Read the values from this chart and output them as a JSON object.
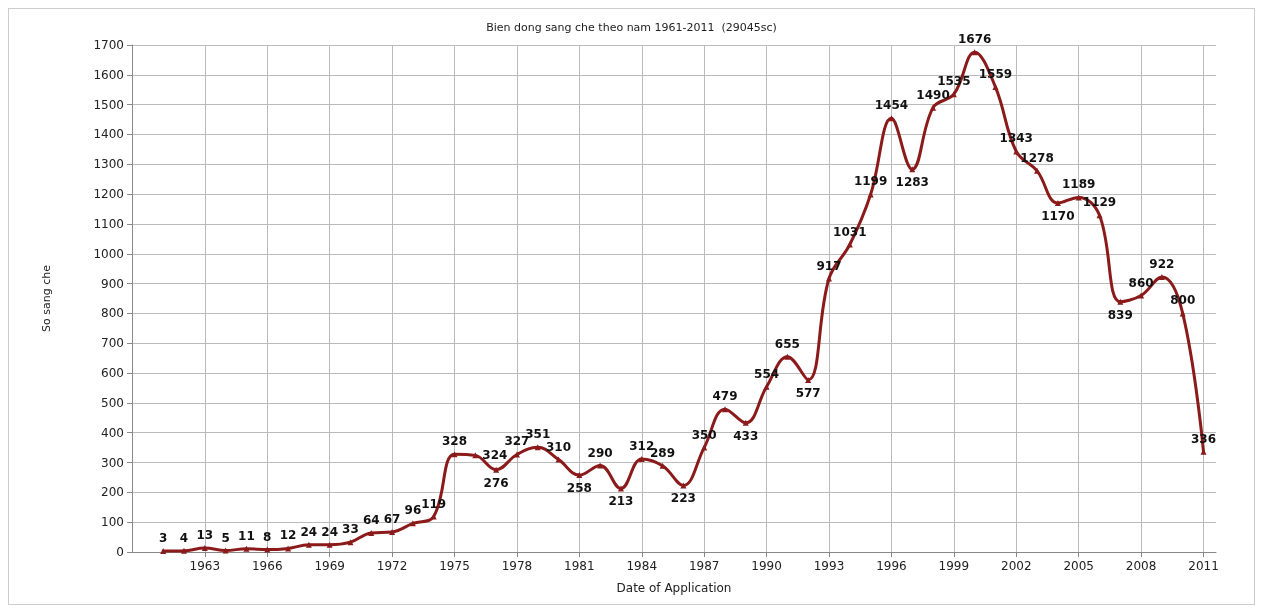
{
  "chart_data": {
    "type": "line",
    "title": "Bien dong sang che theo nam 1961-2011  (29045sc)",
    "xlabel": "Date of Application",
    "ylabel": "So sang che",
    "x": [
      1961,
      1962,
      1963,
      1964,
      1965,
      1966,
      1967,
      1968,
      1969,
      1970,
      1971,
      1972,
      1973,
      1974,
      1975,
      1976,
      1977,
      1978,
      1979,
      1980,
      1981,
      1982,
      1983,
      1984,
      1985,
      1986,
      1987,
      1988,
      1989,
      1990,
      1991,
      1992,
      1993,
      1994,
      1995,
      1996,
      1997,
      1998,
      1999,
      2000,
      2001,
      2002,
      2003,
      2004,
      2005,
      2006,
      2007,
      2008,
      2009,
      2010,
      2011
    ],
    "series": [
      {
        "color": "#8b1a1a",
        "values": [
          3,
          4,
          13,
          5,
          11,
          8,
          12,
          24,
          24,
          33,
          64,
          67,
          96,
          119,
          328,
          324,
          276,
          327,
          351,
          310,
          258,
          290,
          213,
          312,
          289,
          223,
          350,
          479,
          433,
          554,
          655,
          577,
          917,
          1031,
          1199,
          1454,
          1283,
          1490,
          1535,
          1676,
          1559,
          1343,
          1278,
          1170,
          1189,
          1129,
          839,
          860,
          922,
          800,
          336
        ]
      }
    ],
    "xlim": [
      1959.5,
      2011.6
    ],
    "xticks": [
      1963,
      1966,
      1969,
      1972,
      1975,
      1978,
      1981,
      1984,
      1987,
      1990,
      1993,
      1996,
      1999,
      2002,
      2005,
      2008,
      2011
    ],
    "ylim": [
      0,
      1700
    ],
    "yticks": [
      0,
      100,
      200,
      300,
      400,
      500,
      600,
      700,
      800,
      900,
      1000,
      1100,
      1200,
      1300,
      1400,
      1500,
      1600,
      1700
    ],
    "grid": true,
    "marker": "triangle",
    "line_style": "solid",
    "data_labels": true
  }
}
